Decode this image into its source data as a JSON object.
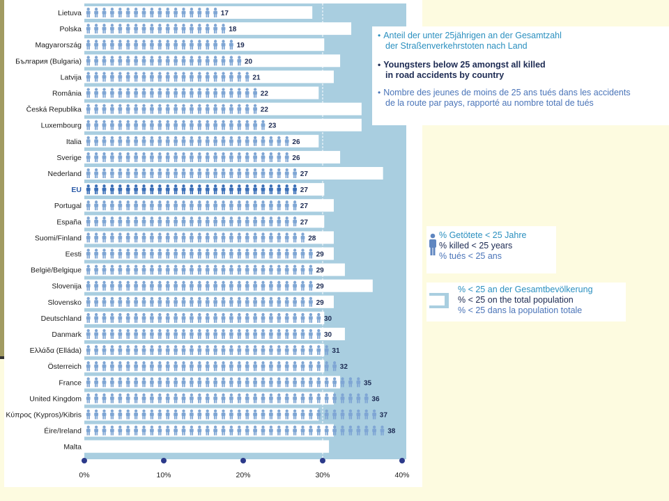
{
  "chart_data": {
    "type": "bar",
    "orientation": "horizontal",
    "x_ticks": [
      "0%",
      "10%",
      "20%",
      "30%",
      "40%"
    ],
    "xlim": [
      0,
      40
    ],
    "categories": [
      "Lietuva",
      "Polska",
      "Magyarország",
      "България (Bulgaria)",
      "Latvija",
      "România",
      "Česká Republika",
      "Luxembourg",
      "Italia",
      "Sverige",
      "Nederland",
      "EU",
      "Portugal",
      "España",
      "Suomi/Finland",
      "Eesti",
      "België/Belgique",
      "Slovenija",
      "Slovensko",
      "Deutschland",
      "Danmark",
      "Ελλάδα (Elláda)",
      "Österreich",
      "France",
      "United Kingdom",
      "Κύπρος (Kypros)/Kibris",
      "Éire/Ireland",
      "Malta"
    ],
    "highlight_category": "EU",
    "series": [
      {
        "name": "% killed < 25 years",
        "values": [
          17,
          18,
          19,
          20,
          21,
          22,
          22,
          23,
          26,
          26,
          27,
          27,
          27,
          27,
          28,
          29,
          29,
          29,
          29,
          30,
          30,
          31,
          32,
          35,
          36,
          37,
          38,
          null
        ]
      },
      {
        "name": "% < 25 on the total population",
        "values": [
          28.7,
          33.6,
          30.2,
          32.2,
          31.4,
          29.5,
          34.9,
          34.9,
          29.5,
          32.2,
          37.6,
          30.2,
          31.4,
          30.2,
          31.4,
          31.4,
          32.8,
          36.3,
          31.4,
          30.2,
          32.8,
          30.2,
          30.2,
          32.2,
          31.4,
          29.5,
          31.4,
          30.8
        ]
      }
    ],
    "colors": {
      "panel_background": "#a9cee0",
      "population_bar": "#ffffff",
      "icon": "#7fa6d4",
      "icon_highlight": "#3a6fb7",
      "axis_dot": "#2c3a8a",
      "value_label": "#1c2a52"
    }
  },
  "title_legend": {
    "de_line1": "Anteil der unter 25jährigen an der Gesamtzahl",
    "de_line2": "der Straßenverkehrstoten nach Land",
    "en_line1": "Youngsters below 25 amongst all killed",
    "en_line2": "in road accidents by country",
    "fr_line1": "Nombre des jeunes de moins de 25 ans tués dans les accidents",
    "fr_line2": "de la route par pays, rapporté au nombre total de tués"
  },
  "icon_legend": {
    "de": "% Getötete < 25 Jahre",
    "en": "% killed < 25 years",
    "fr": "% tués < 25 ans",
    "icon": "person-icon"
  },
  "bar_legend": {
    "de": "% < 25 an der Gesamtbevölkerung",
    "en": "% < 25 on the total population",
    "fr": "% < 25 dans la population totale"
  },
  "bullet_char": "•"
}
